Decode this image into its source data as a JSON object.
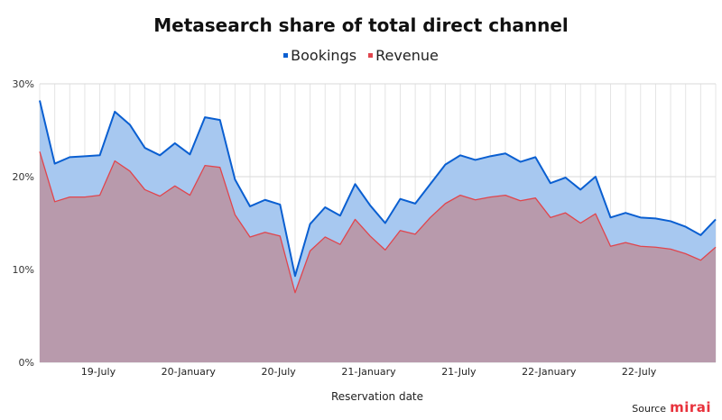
{
  "chart_data": {
    "type": "area",
    "title": "Metasearch share of total direct channel",
    "xlabel": "Reservation date",
    "ylabel": "",
    "ylim": [
      0,
      30
    ],
    "y_ticks": [
      "0%",
      "10%",
      "20%",
      "30%"
    ],
    "x_tick_labels": [
      "19-July",
      "20-January",
      "20-July",
      "21-January",
      "21-July",
      "22-January",
      "22-July"
    ],
    "grid": true,
    "legend_position": "top-center",
    "series": [
      {
        "name": "Bookings",
        "color": "#0a5fd1",
        "fill": "#a7c8f0",
        "values": [
          28.2,
          21.4,
          22.1,
          22.2,
          22.3,
          27.0,
          25.6,
          23.1,
          22.3,
          23.6,
          22.4,
          26.4,
          26.1,
          19.7,
          16.8,
          17.5,
          17.0,
          9.3,
          14.9,
          16.7,
          15.8,
          19.2,
          16.9,
          15.0,
          17.6,
          17.1,
          19.2,
          21.3,
          22.3,
          21.8,
          22.2,
          22.5,
          21.6,
          22.1,
          19.3,
          19.9,
          18.6,
          20.0,
          15.6,
          16.1,
          15.6,
          15.5,
          15.2,
          14.6,
          13.7,
          15.4
        ]
      },
      {
        "name": "Revenue",
        "color": "#e0454d",
        "fill": "#b89aac",
        "values": [
          22.7,
          17.3,
          17.8,
          17.8,
          18.0,
          21.7,
          20.6,
          18.6,
          17.9,
          19.0,
          18.0,
          21.2,
          21.0,
          15.9,
          13.5,
          14.0,
          13.6,
          7.5,
          12.0,
          13.5,
          12.7,
          15.4,
          13.6,
          12.1,
          14.2,
          13.8,
          15.6,
          17.1,
          18.0,
          17.5,
          17.8,
          18.0,
          17.4,
          17.7,
          15.6,
          16.1,
          15.0,
          16.0,
          12.5,
          12.9,
          12.5,
          12.4,
          12.2,
          11.7,
          11.0,
          12.4
        ]
      }
    ]
  },
  "source_label": "Source",
  "source_logo": "mirai"
}
